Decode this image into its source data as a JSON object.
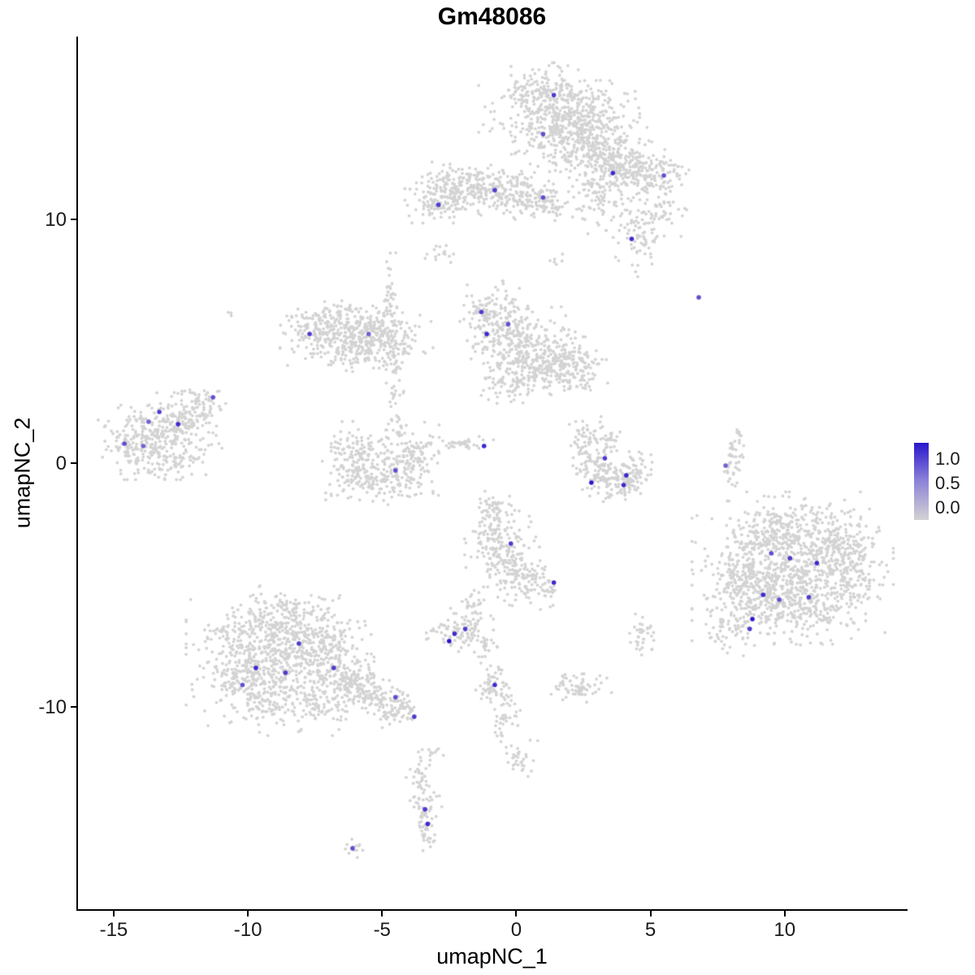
{
  "title": "Gm48086",
  "chart_data": {
    "type": "scatter",
    "title": "Gm48086",
    "xlabel": "umapNC_1",
    "ylabel": "umapNC_2",
    "xlim": [
      -16.36,
      14.55
    ],
    "ylim": [
      -18.33,
      17.5
    ],
    "grid": "off",
    "legend_position": "right",
    "x_ticks": [
      {
        "v": -15,
        "label": "-15"
      },
      {
        "v": -10,
        "label": "-10"
      },
      {
        "v": -5,
        "label": "-5"
      },
      {
        "v": 0,
        "label": "0"
      },
      {
        "v": 5,
        "label": "5"
      },
      {
        "v": 10,
        "label": "10"
      }
    ],
    "y_ticks": [
      {
        "v": 10,
        "label": "10"
      },
      {
        "v": 0,
        "label": "0"
      },
      {
        "v": -10,
        "label": "-10"
      }
    ],
    "legend": {
      "labels": [
        "1.0",
        "0.5",
        "0.0"
      ],
      "low_color": "#D3D3D3",
      "mid_color": "#8E84D8",
      "high_color": "#2A16CC"
    },
    "background_points": {
      "color": "#D3D3D3",
      "point_radius_px": 1.9,
      "cluster_format": "[cx, cy, rx, ry, n]",
      "clusters": [
        [
          1.6,
          14.3,
          1.2,
          0.85,
          480
        ],
        [
          2.5,
          13.2,
          0.95,
          0.7,
          240
        ],
        [
          0.9,
          15.2,
          0.7,
          0.4,
          80
        ],
        [
          3.3,
          12.3,
          0.7,
          0.55,
          140
        ],
        [
          4.3,
          12.0,
          0.75,
          0.5,
          120
        ],
        [
          5.3,
          11.7,
          0.55,
          0.45,
          90
        ],
        [
          3.0,
          10.9,
          0.45,
          0.6,
          70
        ],
        [
          4.6,
          9.4,
          0.5,
          0.7,
          90
        ],
        [
          5.6,
          10.3,
          0.3,
          0.4,
          30
        ],
        [
          -2.4,
          11.1,
          0.7,
          0.5,
          170
        ],
        [
          -1.1,
          11.3,
          0.75,
          0.42,
          150
        ],
        [
          0.2,
          11.0,
          0.55,
          0.4,
          100
        ],
        [
          1.1,
          10.7,
          0.4,
          0.35,
          60
        ],
        [
          -3.1,
          10.6,
          0.3,
          0.3,
          40
        ],
        [
          -2.9,
          8.6,
          0.3,
          0.15,
          15
        ],
        [
          1.5,
          8.3,
          0.15,
          0.12,
          6
        ],
        [
          -0.6,
          5.6,
          0.6,
          0.75,
          150
        ],
        [
          0.3,
          4.6,
          0.85,
          0.85,
          240
        ],
        [
          1.5,
          4.1,
          0.75,
          0.55,
          150
        ],
        [
          2.3,
          3.8,
          0.5,
          0.45,
          80
        ],
        [
          -1.2,
          6.2,
          0.3,
          0.4,
          50
        ],
        [
          0.0,
          3.2,
          0.5,
          0.35,
          60
        ],
        [
          -6.8,
          5.3,
          0.8,
          0.6,
          180
        ],
        [
          -5.6,
          5.6,
          0.8,
          0.5,
          160
        ],
        [
          -4.6,
          5.0,
          0.6,
          0.5,
          100
        ],
        [
          -5.9,
          4.5,
          0.6,
          0.4,
          80
        ],
        [
          -7.6,
          5.6,
          0.4,
          0.4,
          60
        ],
        [
          -4.7,
          6.6,
          0.13,
          0.9,
          45
        ],
        [
          -4.5,
          3.1,
          0.15,
          0.8,
          35
        ],
        [
          -6.1,
          0.2,
          0.45,
          0.7,
          110
        ],
        [
          -5.1,
          -0.7,
          0.8,
          0.4,
          150
        ],
        [
          -3.9,
          0.1,
          0.4,
          0.65,
          95
        ],
        [
          -5.0,
          0.9,
          0.85,
          0.4,
          60
        ],
        [
          -13.2,
          1.2,
          0.95,
          0.75,
          270
        ],
        [
          -12.2,
          1.9,
          0.5,
          0.4,
          80
        ],
        [
          -14.2,
          0.6,
          0.4,
          0.5,
          70
        ],
        [
          -11.6,
          2.5,
          0.3,
          0.25,
          35
        ],
        [
          -12.8,
          0.0,
          0.5,
          0.3,
          40
        ],
        [
          2.6,
          0.8,
          0.28,
          0.5,
          55
        ],
        [
          3.0,
          -0.3,
          0.4,
          0.4,
          80
        ],
        [
          3.8,
          -0.7,
          0.5,
          0.35,
          90
        ],
        [
          4.5,
          -0.3,
          0.3,
          0.4,
          50
        ],
        [
          3.4,
          0.8,
          0.25,
          0.3,
          30
        ],
        [
          10.3,
          -4.3,
          1.5,
          1.25,
          560
        ],
        [
          11.8,
          -3.6,
          0.8,
          0.7,
          200
        ],
        [
          9.0,
          -5.6,
          0.8,
          0.75,
          200
        ],
        [
          10.8,
          -6.0,
          0.8,
          0.55,
          150
        ],
        [
          8.3,
          -4.5,
          0.5,
          0.6,
          100
        ],
        [
          9.6,
          -2.9,
          0.6,
          0.5,
          110
        ],
        [
          12.6,
          -4.8,
          0.5,
          0.6,
          80
        ],
        [
          10.2,
          -2.3,
          0.9,
          0.4,
          60
        ],
        [
          8.0,
          -6.9,
          0.4,
          0.4,
          40
        ],
        [
          -8.8,
          -8.3,
          1.4,
          1.15,
          520
        ],
        [
          -9.9,
          -8.8,
          0.7,
          0.65,
          150
        ],
        [
          -7.4,
          -7.3,
          0.8,
          0.75,
          190
        ],
        [
          -8.8,
          -6.4,
          0.8,
          0.55,
          130
        ],
        [
          -6.4,
          -8.8,
          0.65,
          0.5,
          120
        ],
        [
          -5.4,
          -9.5,
          0.55,
          0.4,
          95
        ],
        [
          -4.5,
          -10.1,
          0.45,
          0.3,
          70
        ],
        [
          -7.1,
          -9.8,
          0.5,
          0.4,
          60
        ],
        [
          -10.4,
          -7.1,
          0.5,
          0.5,
          50
        ],
        [
          -9.0,
          -10.1,
          0.4,
          0.3,
          35
        ],
        [
          -0.7,
          -2.9,
          0.5,
          0.7,
          130
        ],
        [
          -0.2,
          -4.2,
          0.5,
          0.65,
          120
        ],
        [
          0.6,
          -5.0,
          0.3,
          0.4,
          50
        ],
        [
          1.3,
          -5.1,
          0.15,
          0.3,
          18
        ],
        [
          -0.9,
          -2.0,
          0.25,
          0.3,
          30
        ],
        [
          -2.1,
          -6.9,
          0.5,
          0.38,
          90
        ],
        [
          -1.6,
          -6.1,
          0.2,
          0.45,
          35
        ],
        [
          -1.2,
          -7.5,
          0.2,
          0.28,
          22
        ],
        [
          -0.85,
          -9.2,
          0.28,
          0.38,
          55
        ],
        [
          -0.4,
          -10.6,
          0.22,
          0.7,
          45
        ],
        [
          0.1,
          -12.1,
          0.28,
          0.3,
          30
        ],
        [
          2.3,
          -9.2,
          0.5,
          0.28,
          65
        ],
        [
          -3.6,
          -13.0,
          0.2,
          0.5,
          32
        ],
        [
          -3.4,
          -14.3,
          0.25,
          0.5,
          45
        ],
        [
          -3.3,
          -15.2,
          0.2,
          0.3,
          22
        ],
        [
          8.0,
          -0.2,
          0.14,
          0.5,
          28
        ],
        [
          8.25,
          0.9,
          0.13,
          0.45,
          22
        ],
        [
          4.7,
          -7.0,
          0.25,
          0.4,
          35
        ],
        [
          -2.1,
          0.8,
          0.5,
          0.18,
          40
        ],
        [
          -6.0,
          -15.8,
          0.2,
          0.15,
          12
        ],
        [
          -2.9,
          -11.9,
          0.15,
          0.2,
          10
        ],
        [
          -10.6,
          6.1,
          0.1,
          0.1,
          3
        ]
      ]
    },
    "expressing_points": {
      "point_radius_px": 2.8,
      "format": "[x, y, expression_value]",
      "points": [
        [
          1.4,
          15.1,
          0.8
        ],
        [
          1.0,
          13.5,
          0.7
        ],
        [
          3.6,
          11.9,
          0.9
        ],
        [
          5.5,
          11.8,
          0.7
        ],
        [
          -0.8,
          11.2,
          0.8
        ],
        [
          1.0,
          10.9,
          0.7
        ],
        [
          -2.9,
          10.6,
          0.8
        ],
        [
          4.3,
          9.2,
          0.9
        ],
        [
          6.8,
          6.8,
          0.7
        ],
        [
          -1.3,
          6.2,
          0.8
        ],
        [
          -0.3,
          5.7,
          0.7
        ],
        [
          -1.1,
          5.3,
          0.9
        ],
        [
          -7.7,
          5.3,
          0.8
        ],
        [
          -5.5,
          5.3,
          0.6
        ],
        [
          -11.3,
          2.7,
          0.7
        ],
        [
          -13.3,
          2.1,
          0.8
        ],
        [
          -13.7,
          1.7,
          0.6
        ],
        [
          -12.6,
          1.6,
          0.9
        ],
        [
          -14.6,
          0.8,
          0.7
        ],
        [
          -13.9,
          0.7,
          0.6
        ],
        [
          -1.2,
          0.7,
          0.9
        ],
        [
          3.3,
          0.2,
          0.8
        ],
        [
          7.8,
          -0.1,
          0.6
        ],
        [
          4.1,
          -0.5,
          0.9
        ],
        [
          2.8,
          -0.8,
          1.0
        ],
        [
          4.0,
          -0.9,
          0.9
        ],
        [
          -4.5,
          -0.3,
          0.7
        ],
        [
          -0.2,
          -3.3,
          0.8
        ],
        [
          1.4,
          -4.9,
          0.9
        ],
        [
          9.5,
          -3.7,
          0.7
        ],
        [
          10.2,
          -3.9,
          0.8
        ],
        [
          11.2,
          -4.1,
          0.9
        ],
        [
          9.2,
          -5.4,
          0.9
        ],
        [
          9.8,
          -5.6,
          0.7
        ],
        [
          10.9,
          -5.5,
          0.8
        ],
        [
          8.8,
          -6.4,
          1.0
        ],
        [
          8.7,
          -6.8,
          0.8
        ],
        [
          -1.9,
          -6.8,
          0.8
        ],
        [
          -2.3,
          -7.0,
          0.9
        ],
        [
          -2.5,
          -7.3,
          1.0
        ],
        [
          -8.1,
          -7.4,
          0.8
        ],
        [
          -9.7,
          -8.4,
          0.9
        ],
        [
          -8.6,
          -8.6,
          0.8
        ],
        [
          -10.2,
          -9.1,
          0.7
        ],
        [
          -6.8,
          -8.4,
          0.8
        ],
        [
          -4.5,
          -9.6,
          0.7
        ],
        [
          -3.8,
          -10.4,
          0.8
        ],
        [
          -0.8,
          -9.1,
          0.9
        ],
        [
          -3.4,
          -14.2,
          0.8
        ],
        [
          -3.3,
          -14.8,
          0.9
        ],
        [
          -6.1,
          -15.8,
          0.7
        ]
      ]
    }
  }
}
